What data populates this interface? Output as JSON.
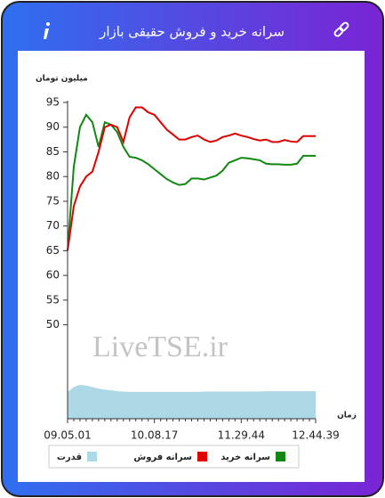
{
  "chart_data": {
    "type": "line",
    "title": "سرانه خرید و فروش حقیقی بازار",
    "y_label": "میلیون تومان",
    "x_label": "زمان",
    "watermark": "LiveTSE.ir",
    "categories": [
      "09.05.01",
      null,
      null,
      null,
      null,
      null,
      null,
      null,
      null,
      null,
      null,
      null,
      null,
      null,
      "10.08.17",
      null,
      null,
      null,
      null,
      null,
      null,
      null,
      null,
      null,
      null,
      null,
      null,
      null,
      "11.29.44",
      null,
      null,
      null,
      null,
      null,
      null,
      null,
      null,
      null,
      null,
      null,
      "12.44.39"
    ],
    "ylim": [
      31,
      95
    ],
    "yticks": [
      50,
      55,
      60,
      65,
      70,
      75,
      80,
      85,
      90,
      95
    ],
    "y2lim": [
      0,
      10
    ],
    "series": [
      {
        "name": "سرانه خرید",
        "color": "#118811",
        "values": [
          65,
          82,
          90,
          92.5,
          91,
          86,
          91,
          90.5,
          89,
          86,
          84,
          83.8,
          83.3,
          82.5,
          81.5,
          80.5,
          79.5,
          78.8,
          78.3,
          78.5,
          79.6,
          79.6,
          79.4,
          79.8,
          80.2,
          81.2,
          82.8,
          83.3,
          83.8,
          83.7,
          83.5,
          83.3,
          82.6,
          82.5,
          82.5,
          82.4,
          82.4,
          82.6,
          84.2,
          84.2,
          84.2
        ]
      },
      {
        "name": "سرانه فروش",
        "color": "#e00000",
        "values": [
          65,
          74,
          78,
          80,
          81,
          85,
          90,
          90.5,
          90,
          87,
          92,
          94,
          94,
          93,
          92.5,
          91,
          89.5,
          88.5,
          87.5,
          87.5,
          88,
          88.3,
          87.5,
          87,
          87.3,
          88,
          88.3,
          88.7,
          88.3,
          88,
          87.6,
          87.3,
          87.5,
          87,
          87,
          87.4,
          87.1,
          87,
          88.2,
          88.2,
          88.2
        ]
      },
      {
        "name": "قدرت",
        "color": "#add8e6",
        "axis": "y2",
        "area": true,
        "values": [
          0.85,
          1.0,
          1.07,
          1.05,
          1.0,
          0.95,
          0.92,
          0.9,
          0.87,
          0.86,
          0.85,
          0.85,
          0.85,
          0.85,
          0.85,
          0.85,
          0.85,
          0.85,
          0.85,
          0.85,
          0.85,
          0.85,
          0.86,
          0.86,
          0.86,
          0.86,
          0.86,
          0.86,
          0.86,
          0.86,
          0.86,
          0.86,
          0.87,
          0.87,
          0.87,
          0.87,
          0.87,
          0.87,
          0.87,
          0.87,
          0.87
        ]
      }
    ]
  }
}
